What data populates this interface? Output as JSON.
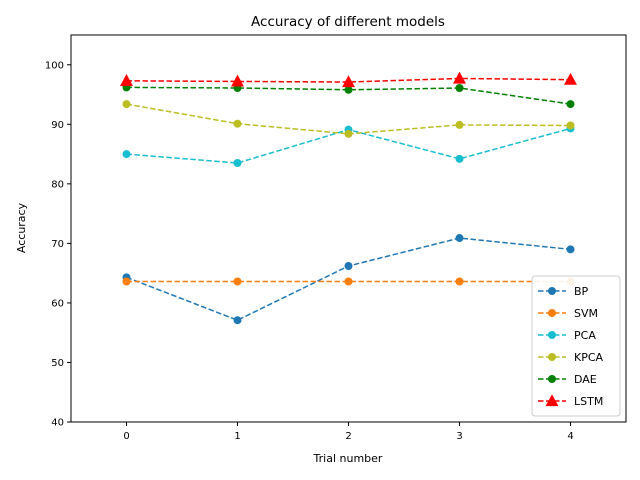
{
  "chart_data": {
    "type": "line",
    "title": "Accuracy of different models",
    "xlabel": "Trial number",
    "ylabel": "Accuracy",
    "x": [
      0,
      1,
      2,
      3,
      4
    ],
    "xlim": [
      -0.5,
      4.5
    ],
    "ylim": [
      40,
      105
    ],
    "xticks": [
      0,
      1,
      2,
      3,
      4
    ],
    "yticks": [
      40,
      50,
      60,
      70,
      80,
      90,
      100
    ],
    "grid": false,
    "legend_position": "lower-right",
    "series": [
      {
        "name": "BP",
        "color": "#1f77b4",
        "marker": "circle",
        "values": [
          64.3,
          57.1,
          66.2,
          70.9,
          69.0
        ]
      },
      {
        "name": "SVM",
        "color": "#ff7f0e",
        "marker": "circle",
        "values": [
          63.6,
          63.6,
          63.6,
          63.6,
          63.6
        ]
      },
      {
        "name": "PCA",
        "color": "#17becf",
        "marker": "circle",
        "values": [
          85.0,
          83.5,
          89.1,
          84.2,
          89.3
        ]
      },
      {
        "name": "KPCA",
        "color": "#bcbd22",
        "marker": "circle",
        "values": [
          93.4,
          90.1,
          88.4,
          89.9,
          89.8
        ]
      },
      {
        "name": "DAE",
        "color": "#008000",
        "marker": "circle",
        "values": [
          96.2,
          96.1,
          95.8,
          96.1,
          93.4
        ]
      },
      {
        "name": "LSTM",
        "color": "#ff0000",
        "marker": "triangle",
        "values": [
          97.3,
          97.2,
          97.1,
          97.7,
          97.5
        ]
      }
    ]
  }
}
